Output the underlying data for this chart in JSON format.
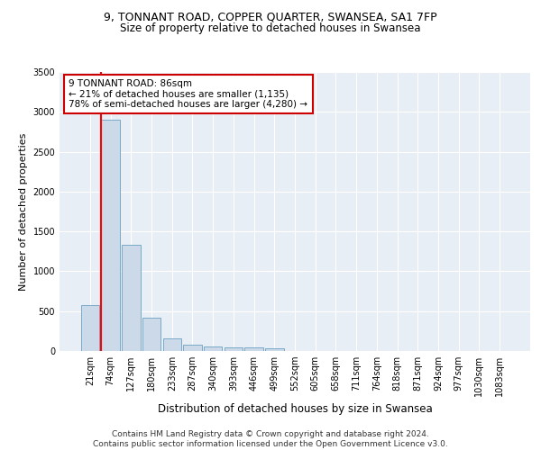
{
  "title1": "9, TONNANT ROAD, COPPER QUARTER, SWANSEA, SA1 7FP",
  "title2": "Size of property relative to detached houses in Swansea",
  "xlabel": "Distribution of detached houses by size in Swansea",
  "ylabel": "Number of detached properties",
  "categories": [
    "21sqm",
    "74sqm",
    "127sqm",
    "180sqm",
    "233sqm",
    "287sqm",
    "340sqm",
    "393sqm",
    "446sqm",
    "499sqm",
    "552sqm",
    "605sqm",
    "658sqm",
    "711sqm",
    "764sqm",
    "818sqm",
    "871sqm",
    "924sqm",
    "977sqm",
    "1030sqm",
    "1083sqm"
  ],
  "values": [
    580,
    2900,
    1330,
    415,
    155,
    80,
    55,
    50,
    40,
    35,
    0,
    0,
    0,
    0,
    0,
    0,
    0,
    0,
    0,
    0,
    0
  ],
  "bar_color": "#ccd9e8",
  "bar_edge_color": "#7aaac8",
  "annotation_text": "9 TONNANT ROAD: 86sqm\n← 21% of detached houses are smaller (1,135)\n78% of semi-detached houses are larger (4,280) →",
  "annotation_box_facecolor": "#ffffff",
  "annotation_box_edgecolor": "#cc0000",
  "red_line_x": 0.575,
  "ylim": [
    0,
    3500
  ],
  "yticks": [
    0,
    500,
    1000,
    1500,
    2000,
    2500,
    3000,
    3500
  ],
  "background_color": "#e8eef5",
  "grid_color": "#ffffff",
  "footer_text": "Contains HM Land Registry data © Crown copyright and database right 2024.\nContains public sector information licensed under the Open Government Licence v3.0.",
  "title1_fontsize": 9,
  "title2_fontsize": 8.5,
  "xlabel_fontsize": 8.5,
  "ylabel_fontsize": 8,
  "tick_fontsize": 7,
  "annotation_fontsize": 7.5,
  "footer_fontsize": 6.5
}
